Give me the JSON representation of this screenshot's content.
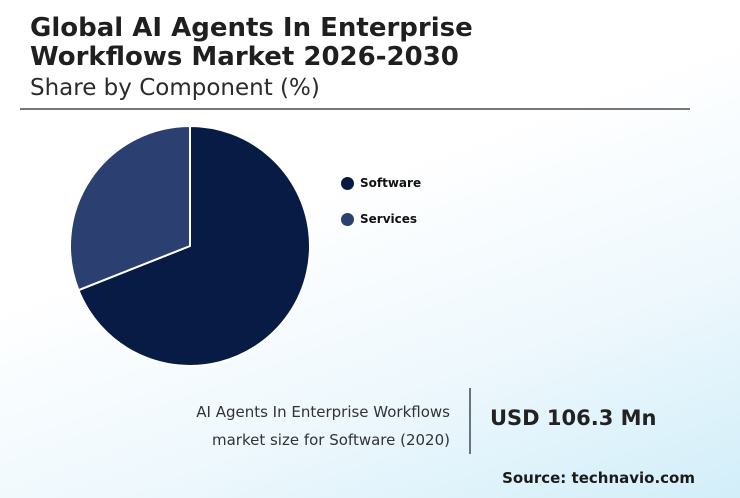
{
  "header": {
    "title": "Global AI Agents In Enterprise Workflows Market 2026-2030",
    "subtitle": "Share by Component (%)"
  },
  "chart_data": {
    "type": "pie",
    "title": "Global AI Agents In Enterprise Workflows Market 2026-2030",
    "subtitle": "Share by Component (%)",
    "categories": [
      "Software",
      "Services"
    ],
    "values": [
      69,
      31
    ],
    "colors": [
      "#071b45",
      "#2b4070"
    ],
    "legend_position": "right",
    "start_angle_deg": 0,
    "direction": "clockwise"
  },
  "stat": {
    "caption_line1": "AI Agents In Enterprise Workflows",
    "caption_line2": "market size for Software (2020)",
    "value": "USD 106.3 Mn"
  },
  "source": "Source: technavio.com"
}
